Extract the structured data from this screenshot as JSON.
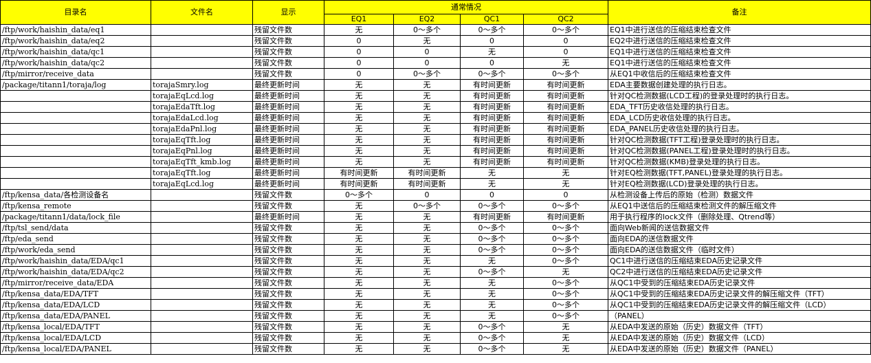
{
  "headers": {
    "dir": "目录名",
    "file": "文件名",
    "display": "显示",
    "normal": "通常情况",
    "eq1": "EQ1",
    "eq2": "EQ2",
    "qc1": "QC1",
    "qc2": "QC2",
    "note": "备注"
  },
  "rows": [
    [
      "/ftp/work/haishin_data/eq1",
      "",
      "残留文件数",
      "无",
      "0～多个",
      "0～多个",
      "0～多个",
      "EQ1中进行送信的压缩结束检查文件"
    ],
    [
      "/ftp/work/haishin_data/eq2",
      "",
      "残留文件数",
      "0",
      "无",
      "0",
      "0",
      "EQ2中进行送信的压缩结束检查文件"
    ],
    [
      "/ftp/work/haishin_data/qc1",
      "",
      "残留文件数",
      "0",
      "0",
      "无",
      "0",
      "EQ1中进行送信的压缩结束检查文件"
    ],
    [
      "/ftp/work/haishin_data/qc2",
      "",
      "残留文件数",
      "0",
      "0",
      "0",
      "无",
      "EQ1中进行送信的压缩结束检查文件"
    ],
    [
      "/ftp/mirror/receive_data",
      "",
      "残留文件数",
      "0",
      "0～多个",
      "0～多个",
      "0～多个",
      "从EQ1中收信后的压缩结束检查文件"
    ],
    [
      "/package/titann1/toraja/log",
      "torajaSmry.log",
      "最终更新时间",
      "无",
      "无",
      "有时间更新",
      "有时间更新",
      "EDA主要数据创建处理的执行日志。"
    ],
    [
      "",
      "torajaEqLcd.log",
      "最终更新时间",
      "无",
      "无",
      "有时间更新",
      "有时间更新",
      "针对QC检测数据(LCD工程)的登录处理时的执行日志。"
    ],
    [
      "",
      "torajaEdaTft.log",
      "最终更新时间",
      "无",
      "无",
      "有时间更新",
      "有时间更新",
      "EDA_TFT历史收信处理的执行日志。"
    ],
    [
      "",
      "torajaEdaLcd.log",
      "最终更新时间",
      "无",
      "无",
      "有时间更新",
      "有时间更新",
      "EDA_LCD历史收信处理的执行日志。"
    ],
    [
      "",
      "torajaEdaPnl.log",
      "最终更新时间",
      "无",
      "无",
      "有时间更新",
      "有时间更新",
      "EDA_PANEL历史收信处理的执行日志。"
    ],
    [
      "",
      "torajaEqTft.log",
      "最终更新时间",
      "无",
      "无",
      "有时间更新",
      "有时间更新",
      "针对QC检测数据(TFT工程)登录处理时的执行日志。"
    ],
    [
      "",
      "torajaEqPnl.log",
      "最终更新时间",
      "无",
      "无",
      "有时间更新",
      "有时间更新",
      "针对QC检测数据(PANEL工程)登录处理时的执行日志。"
    ],
    [
      "",
      "torajaEqTft_kmb.log",
      "最终更新时间",
      "无",
      "无",
      "有时间更新",
      "有时间更新",
      "针对QC检测数据(KMB)登录处理的执行日志。"
    ],
    [
      "",
      "torajaEqTft.log",
      "最终更新时间",
      "有时间更新",
      "有时间更新",
      "无",
      "无",
      "针对EQ检测数据(TFT,PANEL)登录处理的执行日志。"
    ],
    [
      "",
      "torajaEqLcd.log",
      "最终更新时间",
      "有时间更新",
      "有时间更新",
      "无",
      "无",
      "针对EQ检测数据(LCD)登录处理的执行日志。"
    ],
    [
      "/ftp/kensa_data/各检测设备名",
      "",
      "残留文件数",
      "0～多个",
      "0",
      "0",
      "0",
      "从检测设备上传后的原始（检测）数据文件"
    ],
    [
      "/ftp/kensa_remote",
      "",
      "残留文件数",
      "无",
      "0～多个",
      "0～多个",
      "0～多个",
      "从EQ1中送信后的压缩结束检测文件的解压缩文件"
    ],
    [
      "/package/titann1/data/lock_file",
      "",
      "最终更新时间",
      "无",
      "无",
      "有时间更新",
      "有时间更新",
      "用于执行程序的lock文件（删除处理、Qtrend等）"
    ],
    [
      "/ftp/tsl_send/data",
      "",
      "残留文件数",
      "无",
      "无",
      "0～多个",
      "0～多个",
      "面向Web新闻的送信数据文件"
    ],
    [
      "/ftp/eda_send",
      "",
      "残留文件数",
      "无",
      "无",
      "0～多个",
      "0～多个",
      "面向EDA的送信数据文件"
    ],
    [
      "/ftp/work/eda_send",
      "",
      "残留文件数",
      "无",
      "无",
      "0～多个",
      "0～多个",
      "面向EDA的送信数据文件（临时文件）"
    ],
    [
      "/ftp/work/haishin_data/EDA/qc1",
      "",
      "残留文件数",
      "无",
      "无",
      "无",
      "0～多个",
      "QC1中进行送信的压缩结束EDA历史记录文件"
    ],
    [
      "/ftp/work/haishin_data/EDA/qc2",
      "",
      "残留文件数",
      "无",
      "无",
      "0～多个",
      "无",
      "QC2中进行送信的压缩结束EDA历史记录文件"
    ],
    [
      "/ftp/mirror/receive_data/EDA",
      "",
      "残留文件数",
      "无",
      "无",
      "无",
      "0～多个",
      "从QC1中受到的压缩结束EDA历史记录文件"
    ],
    [
      "/ftp/kensa_data/EDA/TFT",
      "",
      "残留文件数",
      "无",
      "无",
      "无",
      "0～多个",
      "从QC1中受到的压缩结束EDA历史记录文件的解压缩文件（TFT）"
    ],
    [
      "/ftp/kensa_data/EDA/LCD",
      "",
      "残留文件数",
      "无",
      "无",
      "无",
      "0～多个",
      "从QC1中受到的压缩结束EDA历史记录文件的解压缩文件（LCD）"
    ],
    [
      "/ftp/kensa_data/EDA/PANEL",
      "",
      "残留文件数",
      "无",
      "无",
      "无",
      "0～多个",
      "（PANEL）"
    ],
    [
      "/ftp/kensa_local/EDA/TFT",
      "",
      "残留文件数",
      "无",
      "无",
      "0～多个",
      "无",
      "从EDA中发送的原始（历史）数据文件（TFT）"
    ],
    [
      "/ftp/kensa_local/EDA/LCD",
      "",
      "残留文件数",
      "无",
      "无",
      "0～多个",
      "无",
      "从EDA中发送的原始（历史）数据文件（LCD）"
    ],
    [
      "/ftp/kensa_local/EDA/PANEL",
      "",
      "残留文件数",
      "无",
      "无",
      "0～多个",
      "无",
      "从EDA中发送的原始（历史）数据文件（PANEL）"
    ]
  ]
}
